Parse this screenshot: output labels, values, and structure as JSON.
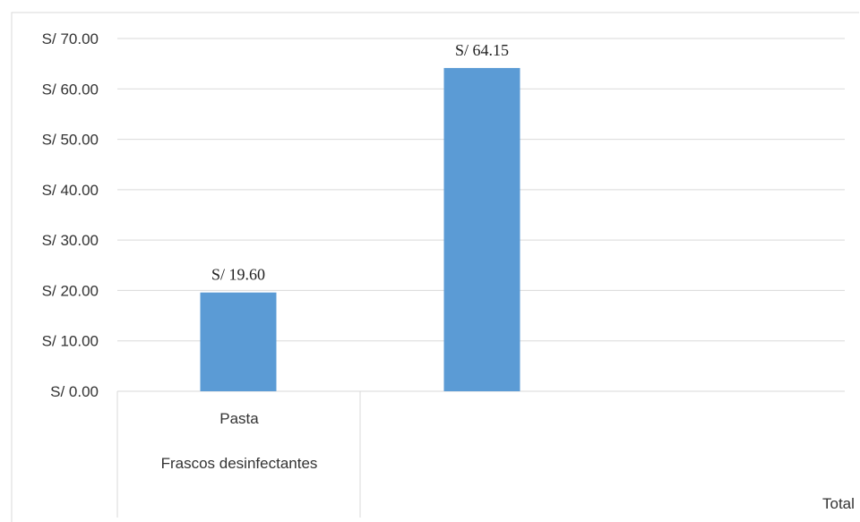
{
  "chart_data": {
    "type": "bar",
    "title": "",
    "xlabel": "",
    "ylabel": "",
    "categories": [
      "Pasta",
      "Total"
    ],
    "group_label": "Frascos desinfectantes",
    "values": [
      19.6,
      64.15
    ],
    "data_labels": [
      "S/ 19.60",
      "S/ 64.15"
    ],
    "ylim": [
      0,
      70
    ],
    "yticks": [
      0,
      10,
      20,
      30,
      40,
      50,
      60,
      70
    ],
    "ytick_labels": [
      "S/ 0.00",
      "S/ 10.00",
      "S/ 20.00",
      "S/ 30.00",
      "S/ 40.00",
      "S/ 50.00",
      "S/ 60.00",
      "S/ 70.00"
    ],
    "grid": true,
    "legend": "none",
    "colors": {
      "bar": "#5b9bd5",
      "grid": "#d9d9d9",
      "frame": "#d9d9d9"
    }
  }
}
